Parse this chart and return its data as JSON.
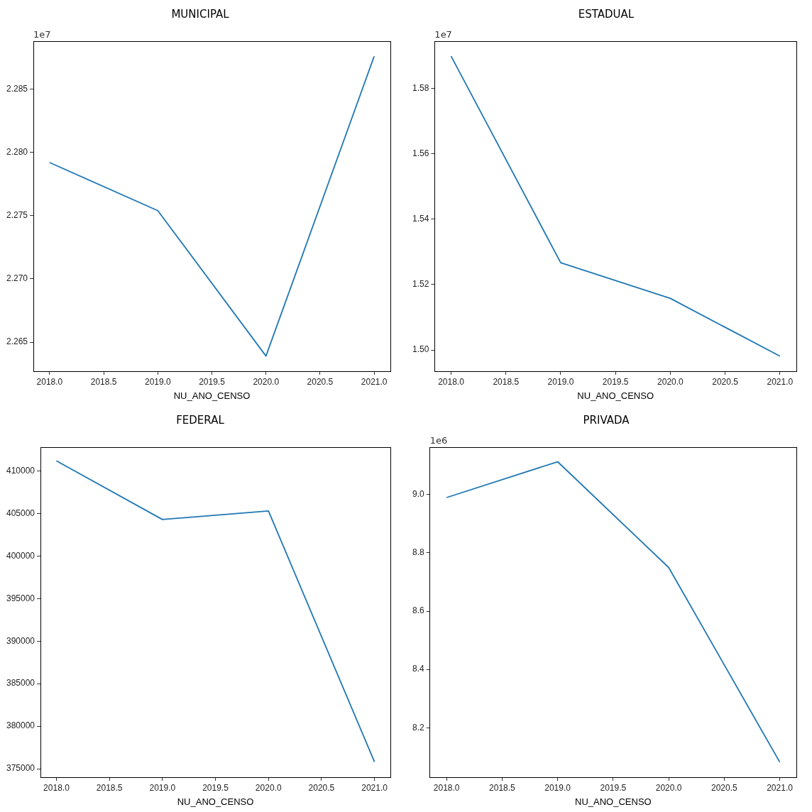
{
  "chart_data": [
    {
      "type": "line",
      "title": "MUNICIPAL",
      "xlabel": "NU_ANO_CENSO",
      "annotations": [
        "1e7"
      ],
      "x": [
        2018,
        2019,
        2020,
        2021
      ],
      "series": [
        {
          "color": "#1f77b4",
          "values": [
            2.2792,
            2.2754,
            2.2639,
            2.2876
          ]
        }
      ],
      "xlim": [
        2017.85,
        2021.15
      ],
      "xticks": [
        {
          "value": 2018,
          "label": "2018.0"
        },
        {
          "value": 2018.5,
          "label": "2018.5"
        },
        {
          "value": 2019,
          "label": "2019.0"
        },
        {
          "value": 2019.5,
          "label": "2019.5"
        },
        {
          "value": 2020,
          "label": "2020.0"
        },
        {
          "value": 2020.5,
          "label": "2020.5"
        },
        {
          "value": 2021,
          "label": "2021.0"
        }
      ],
      "ylim": [
        2.2627,
        2.2888
      ],
      "yticks": [
        2.265,
        {
          "value": 2.27,
          "label": "2.270"
        },
        2.275,
        {
          "value": 2.28,
          "label": "2.280"
        },
        2.285
      ],
      "grid": false,
      "legend": false,
      "marker": "none",
      "line_style": "solid"
    },
    {
      "type": "line",
      "title": "ESTADUAL",
      "xlabel": "NU_ANO_CENSO",
      "annotations": [
        "1e7"
      ],
      "x": [
        2018,
        2019,
        2020,
        2021
      ],
      "series": [
        {
          "color": "#1f77b4",
          "values": [
            1.5899,
            1.5267,
            1.5158,
            1.4981
          ]
        }
      ],
      "xlim": [
        2017.85,
        2021.15
      ],
      "xticks": [
        {
          "value": 2018,
          "label": "2018.0"
        },
        {
          "value": 2018.5,
          "label": "2018.5"
        },
        {
          "value": 2019,
          "label": "2019.0"
        },
        {
          "value": 2019.5,
          "label": "2019.5"
        },
        {
          "value": 2020,
          "label": "2020.0"
        },
        {
          "value": 2020.5,
          "label": "2020.5"
        },
        {
          "value": 2021,
          "label": "2021.0"
        }
      ],
      "ylim": [
        1.4935,
        1.5945
      ],
      "yticks": [
        {
          "value": 1.5,
          "label": "1.50"
        },
        1.52,
        1.54,
        1.56,
        1.58
      ],
      "grid": false,
      "legend": false,
      "marker": "none",
      "line_style": "solid"
    },
    {
      "type": "line",
      "title": "FEDERAL",
      "xlabel": "NU_ANO_CENSO",
      "x": [
        2018,
        2019,
        2020,
        2021
      ],
      "series": [
        {
          "color": "#1f77b4",
          "values": [
            411200,
            404300,
            405300,
            375800
          ]
        }
      ],
      "xlim": [
        2017.85,
        2021.15
      ],
      "xticks": [
        {
          "value": 2018,
          "label": "2018.0"
        },
        {
          "value": 2018.5,
          "label": "2018.5"
        },
        {
          "value": 2019,
          "label": "2019.0"
        },
        {
          "value": 2019.5,
          "label": "2019.5"
        },
        {
          "value": 2020,
          "label": "2020.0"
        },
        {
          "value": 2020.5,
          "label": "2020.5"
        },
        {
          "value": 2021,
          "label": "2021.0"
        }
      ],
      "ylim": [
        374000,
        412800
      ],
      "yticks": [
        375000,
        380000,
        385000,
        390000,
        395000,
        400000,
        405000,
        410000
      ],
      "grid": false,
      "legend": false,
      "marker": "none",
      "line_style": "solid"
    },
    {
      "type": "line",
      "title": "PRIVADA",
      "xlabel": "NU_ANO_CENSO",
      "annotations": [
        "1e6"
      ],
      "x": [
        2018,
        2019,
        2020,
        2021
      ],
      "series": [
        {
          "color": "#1f77b4",
          "values": [
            8.99,
            9.113,
            8.75,
            8.082
          ]
        }
      ],
      "xlim": [
        2017.85,
        2021.15
      ],
      "xticks": [
        {
          "value": 2018,
          "label": "2018.0"
        },
        {
          "value": 2018.5,
          "label": "2018.5"
        },
        {
          "value": 2019,
          "label": "2019.0"
        },
        {
          "value": 2019.5,
          "label": "2019.5"
        },
        {
          "value": 2020,
          "label": "2020.0"
        },
        {
          "value": 2020.5,
          "label": "2020.5"
        },
        {
          "value": 2021,
          "label": "2021.0"
        }
      ],
      "ylim": [
        8.03,
        9.163
      ],
      "yticks": [
        8.2,
        8.4,
        8.6,
        8.8,
        {
          "value": 9,
          "label": "9.0"
        }
      ],
      "grid": false,
      "legend": false,
      "marker": "none",
      "line_style": "solid"
    }
  ]
}
